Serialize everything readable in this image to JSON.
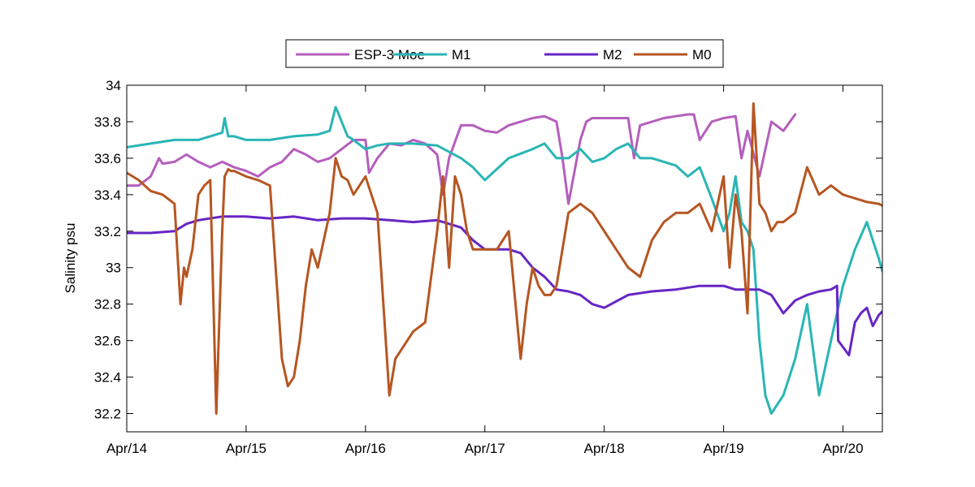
{
  "chart_data": {
    "type": "line",
    "ylabel": "Salinity psu",
    "xlim": [
      0,
      6.33
    ],
    "ylim": [
      32.1,
      34.0
    ],
    "x_ticks": [
      0,
      1,
      2,
      3,
      4,
      5,
      6
    ],
    "x_tick_labels": [
      "Apr/14",
      "Apr/15",
      "Apr/16",
      "Apr/17",
      "Apr/18",
      "Apr/19",
      "Apr/20"
    ],
    "y_ticks": [
      32.2,
      32.4,
      32.6,
      32.8,
      33,
      33.2,
      33.4,
      33.6,
      33.8,
      34
    ],
    "y_tick_labels": [
      "32.2",
      "32.4",
      "32.6",
      "32.8",
      "33",
      "33.2",
      "33.4",
      "33.6",
      "33.8",
      "34"
    ],
    "grid": false,
    "legend_position": "top-center",
    "series": [
      {
        "name": "ESP-3 Moe",
        "color": "#b55ebd",
        "x": [
          0.0,
          0.1,
          0.2,
          0.27,
          0.3,
          0.4,
          0.5,
          0.6,
          0.7,
          0.8,
          0.9,
          1.0,
          1.1,
          1.2,
          1.3,
          1.4,
          1.5,
          1.6,
          1.7,
          1.8,
          1.9,
          2.0,
          2.03,
          2.1,
          2.2,
          2.3,
          2.4,
          2.5,
          2.6,
          2.65,
          2.7,
          2.8,
          2.9,
          3.0,
          3.1,
          3.2,
          3.3,
          3.4,
          3.5,
          3.6,
          3.65,
          3.7,
          3.8,
          3.85,
          3.9,
          4.0,
          4.1,
          4.2,
          4.25,
          4.3,
          4.4,
          4.5,
          4.6,
          4.7,
          4.75,
          4.8,
          4.9,
          5.0,
          5.1,
          5.15,
          5.2,
          5.3,
          5.4,
          5.5,
          5.6
        ],
        "y": [
          33.45,
          33.45,
          33.5,
          33.6,
          33.57,
          33.58,
          33.62,
          33.58,
          33.55,
          33.58,
          33.55,
          33.53,
          33.5,
          33.55,
          33.58,
          33.65,
          33.62,
          33.58,
          33.6,
          33.65,
          33.7,
          33.7,
          33.52,
          33.6,
          33.68,
          33.67,
          33.7,
          33.68,
          33.62,
          33.4,
          33.6,
          33.78,
          33.78,
          33.75,
          33.74,
          33.78,
          33.8,
          33.82,
          33.83,
          33.8,
          33.6,
          33.35,
          33.7,
          33.8,
          33.82,
          33.82,
          33.82,
          33.82,
          33.6,
          33.78,
          33.8,
          33.82,
          33.83,
          33.84,
          33.84,
          33.7,
          33.8,
          33.82,
          33.83,
          33.6,
          33.75,
          33.5,
          33.8,
          33.75,
          33.84
        ]
      },
      {
        "name": "M1",
        "color": "#2ab5b5",
        "x": [
          0.0,
          0.2,
          0.4,
          0.6,
          0.7,
          0.8,
          0.82,
          0.85,
          0.9,
          1.0,
          1.2,
          1.4,
          1.6,
          1.7,
          1.75,
          1.77,
          1.8,
          1.85,
          1.9,
          2.0,
          2.1,
          2.2,
          2.4,
          2.6,
          2.8,
          2.9,
          3.0,
          3.2,
          3.4,
          3.5,
          3.6,
          3.7,
          3.8,
          3.9,
          4.0,
          4.1,
          4.2,
          4.3,
          4.4,
          4.5,
          4.6,
          4.7,
          4.8,
          4.9,
          5.0,
          5.05,
          5.1,
          5.15,
          5.2,
          5.25,
          5.3,
          5.35,
          5.4,
          5.5,
          5.6,
          5.7,
          5.8,
          5.9,
          6.0,
          6.1,
          6.2,
          6.3,
          6.33
        ],
        "y": [
          33.66,
          33.68,
          33.7,
          33.7,
          33.72,
          33.74,
          33.82,
          33.72,
          33.72,
          33.7,
          33.7,
          33.72,
          33.73,
          33.75,
          33.88,
          33.85,
          33.8,
          33.72,
          33.7,
          33.65,
          33.67,
          33.68,
          33.68,
          33.67,
          33.6,
          33.55,
          33.48,
          33.6,
          33.65,
          33.68,
          33.6,
          33.6,
          33.65,
          33.58,
          33.6,
          33.65,
          33.68,
          33.6,
          33.6,
          33.58,
          33.56,
          33.5,
          33.55,
          33.38,
          33.2,
          33.3,
          33.5,
          33.25,
          33.2,
          33.1,
          32.6,
          32.3,
          32.2,
          32.3,
          32.5,
          32.8,
          32.3,
          32.6,
          32.9,
          33.1,
          33.25,
          33.05,
          32.98
        ]
      },
      {
        "name": "M2",
        "color": "#6626c4",
        "x": [
          0.0,
          0.2,
          0.4,
          0.5,
          0.6,
          0.8,
          1.0,
          1.2,
          1.4,
          1.6,
          1.8,
          2.0,
          2.2,
          2.4,
          2.6,
          2.8,
          2.9,
          3.0,
          3.1,
          3.2,
          3.3,
          3.4,
          3.5,
          3.6,
          3.7,
          3.8,
          3.9,
          4.0,
          4.2,
          4.4,
          4.6,
          4.8,
          5.0,
          5.1,
          5.2,
          5.3,
          5.4,
          5.5,
          5.6,
          5.7,
          5.8,
          5.9,
          5.95,
          5.96,
          6.05,
          6.1,
          6.15,
          6.2,
          6.25,
          6.3,
          6.33
        ],
        "y": [
          33.19,
          33.19,
          33.2,
          33.24,
          33.26,
          33.28,
          33.28,
          33.27,
          33.28,
          33.26,
          33.27,
          33.27,
          33.26,
          33.25,
          33.26,
          33.22,
          33.15,
          33.1,
          33.1,
          33.1,
          33.08,
          33.0,
          32.95,
          32.88,
          32.87,
          32.85,
          32.8,
          32.78,
          32.85,
          32.87,
          32.88,
          32.9,
          32.9,
          32.88,
          32.88,
          32.88,
          32.85,
          32.75,
          32.82,
          32.85,
          32.87,
          32.88,
          32.9,
          32.6,
          32.52,
          32.7,
          32.75,
          32.78,
          32.68,
          32.74,
          32.76
        ]
      },
      {
        "name": "M0",
        "color": "#b65622",
        "x": [
          0.0,
          0.1,
          0.2,
          0.3,
          0.4,
          0.45,
          0.48,
          0.5,
          0.55,
          0.6,
          0.65,
          0.7,
          0.75,
          0.8,
          0.82,
          0.85,
          0.87,
          0.9,
          1.0,
          1.1,
          1.2,
          1.3,
          1.35,
          1.4,
          1.45,
          1.5,
          1.55,
          1.6,
          1.7,
          1.75,
          1.8,
          1.85,
          1.9,
          2.0,
          2.1,
          2.2,
          2.25,
          2.3,
          2.35,
          2.4,
          2.5,
          2.6,
          2.65,
          2.7,
          2.75,
          2.8,
          2.85,
          2.9,
          3.0,
          3.1,
          3.2,
          3.3,
          3.35,
          3.4,
          3.45,
          3.5,
          3.55,
          3.6,
          3.7,
          3.8,
          3.9,
          4.0,
          4.1,
          4.2,
          4.3,
          4.4,
          4.5,
          4.6,
          4.7,
          4.8,
          4.9,
          5.0,
          5.05,
          5.1,
          5.15,
          5.2,
          5.25,
          5.3,
          5.35,
          5.4,
          5.45,
          5.5,
          5.6,
          5.7,
          5.8,
          5.9,
          6.0,
          6.1,
          6.2,
          6.3,
          6.33
        ],
        "y": [
          33.52,
          33.48,
          33.42,
          33.4,
          33.35,
          32.8,
          33.0,
          32.95,
          33.1,
          33.4,
          33.45,
          33.48,
          32.2,
          33.2,
          33.5,
          33.54,
          33.53,
          33.53,
          33.5,
          33.48,
          33.45,
          32.5,
          32.35,
          32.4,
          32.6,
          32.9,
          33.1,
          33.0,
          33.3,
          33.6,
          33.5,
          33.48,
          33.4,
          33.5,
          33.3,
          32.3,
          32.5,
          32.55,
          32.6,
          32.65,
          32.7,
          33.2,
          33.5,
          33.0,
          33.5,
          33.4,
          33.2,
          33.1,
          33.1,
          33.1,
          33.2,
          32.5,
          32.8,
          33.0,
          32.9,
          32.85,
          32.85,
          32.9,
          33.3,
          33.35,
          33.3,
          33.2,
          33.1,
          33.0,
          32.95,
          33.15,
          33.25,
          33.3,
          33.3,
          33.35,
          33.2,
          33.5,
          33.0,
          33.4,
          33.2,
          32.75,
          33.9,
          33.35,
          33.3,
          33.2,
          33.25,
          33.25,
          33.3,
          33.55,
          33.4,
          33.45,
          33.4,
          33.38,
          33.36,
          33.35,
          33.34
        ]
      }
    ]
  }
}
